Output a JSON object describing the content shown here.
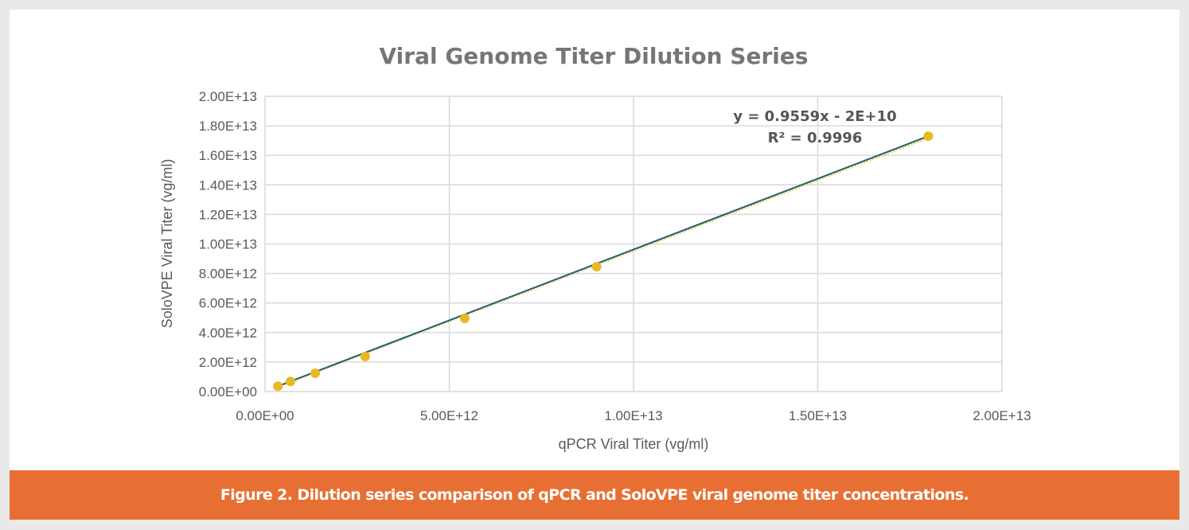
{
  "chart_data": {
    "type": "scatter",
    "title": "Viral Genome Titer Dilution Series",
    "xlabel": "qPCR Viral Titer (vg/ml)",
    "ylabel": "SoloVPE Viral Titer (vg/ml)",
    "xlim": [
      0,
      20000000000000.0
    ],
    "ylim": [
      0,
      20000000000000.0
    ],
    "x_ticks": [
      0,
      5000000000000.0,
      10000000000000.0,
      15000000000000.0,
      20000000000000.0
    ],
    "x_tick_labels": [
      "0.00E+00",
      "5.00E+12",
      "1.00E+13",
      "1.50E+13",
      "2.00E+13"
    ],
    "y_ticks": [
      0,
      2000000000000.0,
      4000000000000.0,
      6000000000000.0,
      8000000000000.0,
      10000000000000.0,
      12000000000000.0,
      14000000000000.0,
      16000000000000.0,
      18000000000000.0,
      20000000000000.0
    ],
    "y_tick_labels": [
      "0.00E+00",
      "2.00E+12",
      "4.00E+12",
      "6.00E+12",
      "8.00E+12",
      "1.00E+13",
      "1.20E+13",
      "1.40E+13",
      "1.60E+13",
      "1.80E+13",
      "2.00E+13"
    ],
    "grid": true,
    "points": [
      {
        "x": 350000000000.0,
        "y": 360000000000.0
      },
      {
        "x": 690000000000.0,
        "y": 680000000000.0
      },
      {
        "x": 1360000000000.0,
        "y": 1240000000000.0
      },
      {
        "x": 2720000000000.0,
        "y": 2370000000000.0
      },
      {
        "x": 5420000000000.0,
        "y": 4960000000000.0
      },
      {
        "x": 9000000000000.0,
        "y": 8460000000000.0
      },
      {
        "x": 18000000000000.0,
        "y": 17300000000000.0
      }
    ],
    "trendline": {
      "slope": 0.9559,
      "intercept": -20000000000.0,
      "equation": "y = 0.9559x - 2E+10",
      "r2": "R² = 0.9996"
    },
    "colors": {
      "points": "#e8b923",
      "line": "#1f5f7a",
      "trend": "#e8d23a",
      "grid": "#d9d9d9"
    }
  },
  "caption": "Figure 2. Dilution series comparison of qPCR and SoloVPE viral genome titer concentrations."
}
